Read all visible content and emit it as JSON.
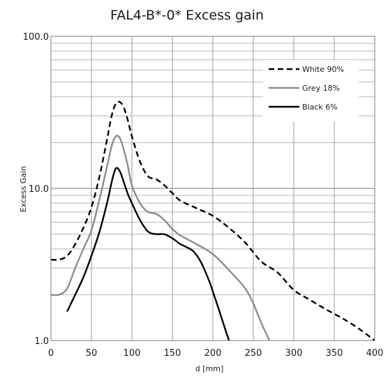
{
  "chart_data": {
    "type": "line",
    "title": "FAL4-B*-0* Excess gain",
    "xlabel": "d [mm]",
    "ylabel": "Excess Gain",
    "xlim": [
      0,
      400
    ],
    "ylim": [
      1.0,
      100.0
    ],
    "yscale": "log",
    "grid": true,
    "legend_position": "top-right",
    "x_ticks": [
      "0",
      "50",
      "100",
      "150",
      "200",
      "250",
      "300",
      "350",
      "400"
    ],
    "y_ticks": [
      "1.0",
      "10.0",
      "100.0"
    ],
    "series": [
      {
        "name": "White 90%",
        "style": "dashed",
        "color": "#000000",
        "x": [
          0,
          10,
          20,
          30,
          40,
          50,
          60,
          70,
          75,
          80,
          85,
          90,
          95,
          100,
          110,
          120,
          130,
          140,
          150,
          160,
          180,
          200,
          220,
          240,
          260,
          280,
          300,
          320,
          340,
          360,
          380,
          400
        ],
        "y": [
          3.4,
          3.4,
          3.6,
          4.3,
          5.5,
          7.5,
          12,
          22,
          30,
          36,
          37,
          34,
          28,
          22,
          15,
          12,
          11.5,
          10.5,
          9.3,
          8.3,
          7.4,
          6.6,
          5.5,
          4.4,
          3.3,
          2.8,
          2.15,
          1.85,
          1.6,
          1.4,
          1.2,
          1.0
        ]
      },
      {
        "name": "Grey 18%",
        "style": "solid",
        "color": "#8c8c8c",
        "x": [
          0,
          10,
          20,
          30,
          40,
          50,
          60,
          70,
          75,
          80,
          85,
          90,
          95,
          100,
          110,
          120,
          130,
          140,
          150,
          160,
          180,
          200,
          220,
          240,
          250,
          260,
          270
        ],
        "y": [
          2.0,
          2.0,
          2.2,
          3.0,
          4.0,
          5.3,
          8.5,
          14.5,
          19,
          22,
          21.5,
          18,
          14,
          10.5,
          8.0,
          7.0,
          6.8,
          6.2,
          5.4,
          4.9,
          4.3,
          3.7,
          2.9,
          2.2,
          1.75,
          1.3,
          1.0
        ]
      },
      {
        "name": "Black 6%",
        "style": "solid",
        "color": "#000000",
        "x": [
          20,
          30,
          40,
          50,
          60,
          70,
          75,
          80,
          85,
          90,
          95,
          100,
          110,
          120,
          130,
          140,
          150,
          160,
          175,
          185,
          195,
          200,
          205,
          210,
          215,
          220
        ],
        "y": [
          1.55,
          2.0,
          2.6,
          3.6,
          5.2,
          8.3,
          11,
          13.5,
          13,
          11,
          9.2,
          8.0,
          6.2,
          5.2,
          5.0,
          5.0,
          4.7,
          4.3,
          3.9,
          3.3,
          2.5,
          2.1,
          1.75,
          1.45,
          1.2,
          1.0
        ]
      }
    ]
  }
}
